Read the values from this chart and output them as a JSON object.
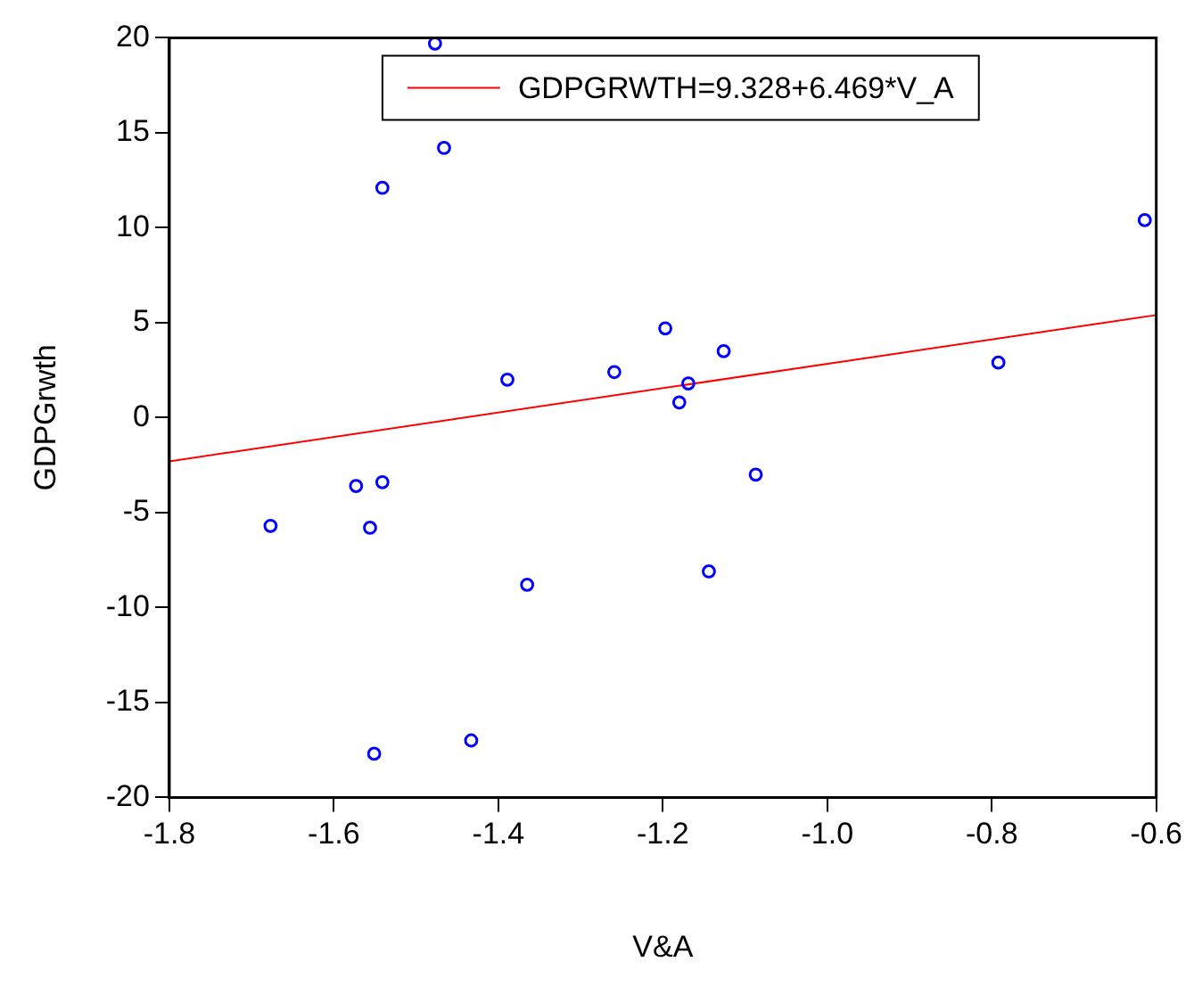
{
  "chart_data": {
    "type": "scatter",
    "xlabel": "V&A",
    "ylabel": "GDPGrwth",
    "xlim": [
      -1.8,
      -0.6
    ],
    "xticks": [
      {
        "value": -1.8,
        "label": "-1.8"
      },
      {
        "value": -1.6,
        "label": "-1.6"
      },
      {
        "value": -1.4,
        "label": "-1.4"
      },
      {
        "value": -1.2,
        "label": "-1.2"
      },
      {
        "value": -1.0,
        "label": "-1.0"
      },
      {
        "value": -0.8,
        "label": "-0.8"
      },
      {
        "value": -0.6,
        "label": "-0.6"
      }
    ],
    "ylim": [
      -20,
      20
    ],
    "yticks": [
      -20,
      -15,
      -10,
      -5,
      0,
      5,
      10,
      15,
      20
    ],
    "grid": false,
    "legend": "top",
    "marker": "circle",
    "series": [
      {
        "color": "#0000ff",
        "x": [
          -1.477,
          -1.466,
          -1.541,
          -1.197,
          -1.389,
          -1.259,
          -1.169,
          -1.18,
          -0.614,
          -1.126,
          -0.792,
          -1.573,
          -1.541,
          -1.677,
          -1.556,
          -1.365,
          -1.433,
          -1.551,
          -1.087,
          -1.144
        ],
        "values": [
          19.7,
          14.2,
          12.1,
          4.7,
          2.0,
          2.4,
          1.8,
          0.8,
          10.4,
          3.5,
          2.9,
          -3.6,
          -3.4,
          -5.7,
          -5.8,
          -8.8,
          -17.0,
          -17.7,
          -3.0,
          -8.1
        ]
      },
      {
        "type": "line",
        "name": "GDPGRWTH=9.328+6.469*V_A",
        "color": "#ff0000",
        "marker": "none",
        "x": [
          -1.8,
          -0.6
        ],
        "values": [
          -2.3,
          5.4
        ]
      }
    ]
  }
}
